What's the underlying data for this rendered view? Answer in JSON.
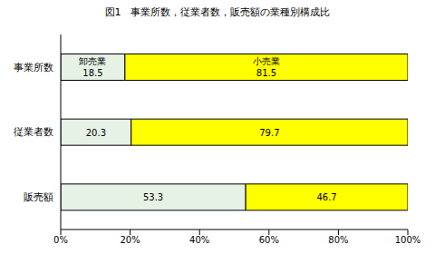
{
  "chart_data": {
    "type": "bar",
    "title": "図1　事業所数，従業者数，販売額の業種別構成比",
    "orientation": "horizontal",
    "stacked": true,
    "data_labels": true,
    "grid": false,
    "categories": [
      "事業所数",
      "従業者数",
      "販売額"
    ],
    "series": [
      {
        "name": "卸売業",
        "color": "#e6f2e6",
        "values": [
          18.5,
          20.3,
          53.3
        ]
      },
      {
        "name": "小売業",
        "color": "#ffff00",
        "values": [
          81.5,
          79.7,
          46.7
        ]
      }
    ],
    "xlim": [
      0,
      100
    ],
    "xticks": [
      {
        "value": 0,
        "label": "0%"
      },
      {
        "value": 20,
        "label": "20%"
      },
      {
        "value": 40,
        "label": "40%"
      },
      {
        "value": 60,
        "label": "60%"
      },
      {
        "value": 80,
        "label": "80%"
      },
      {
        "value": 100,
        "label": "100%"
      }
    ]
  }
}
